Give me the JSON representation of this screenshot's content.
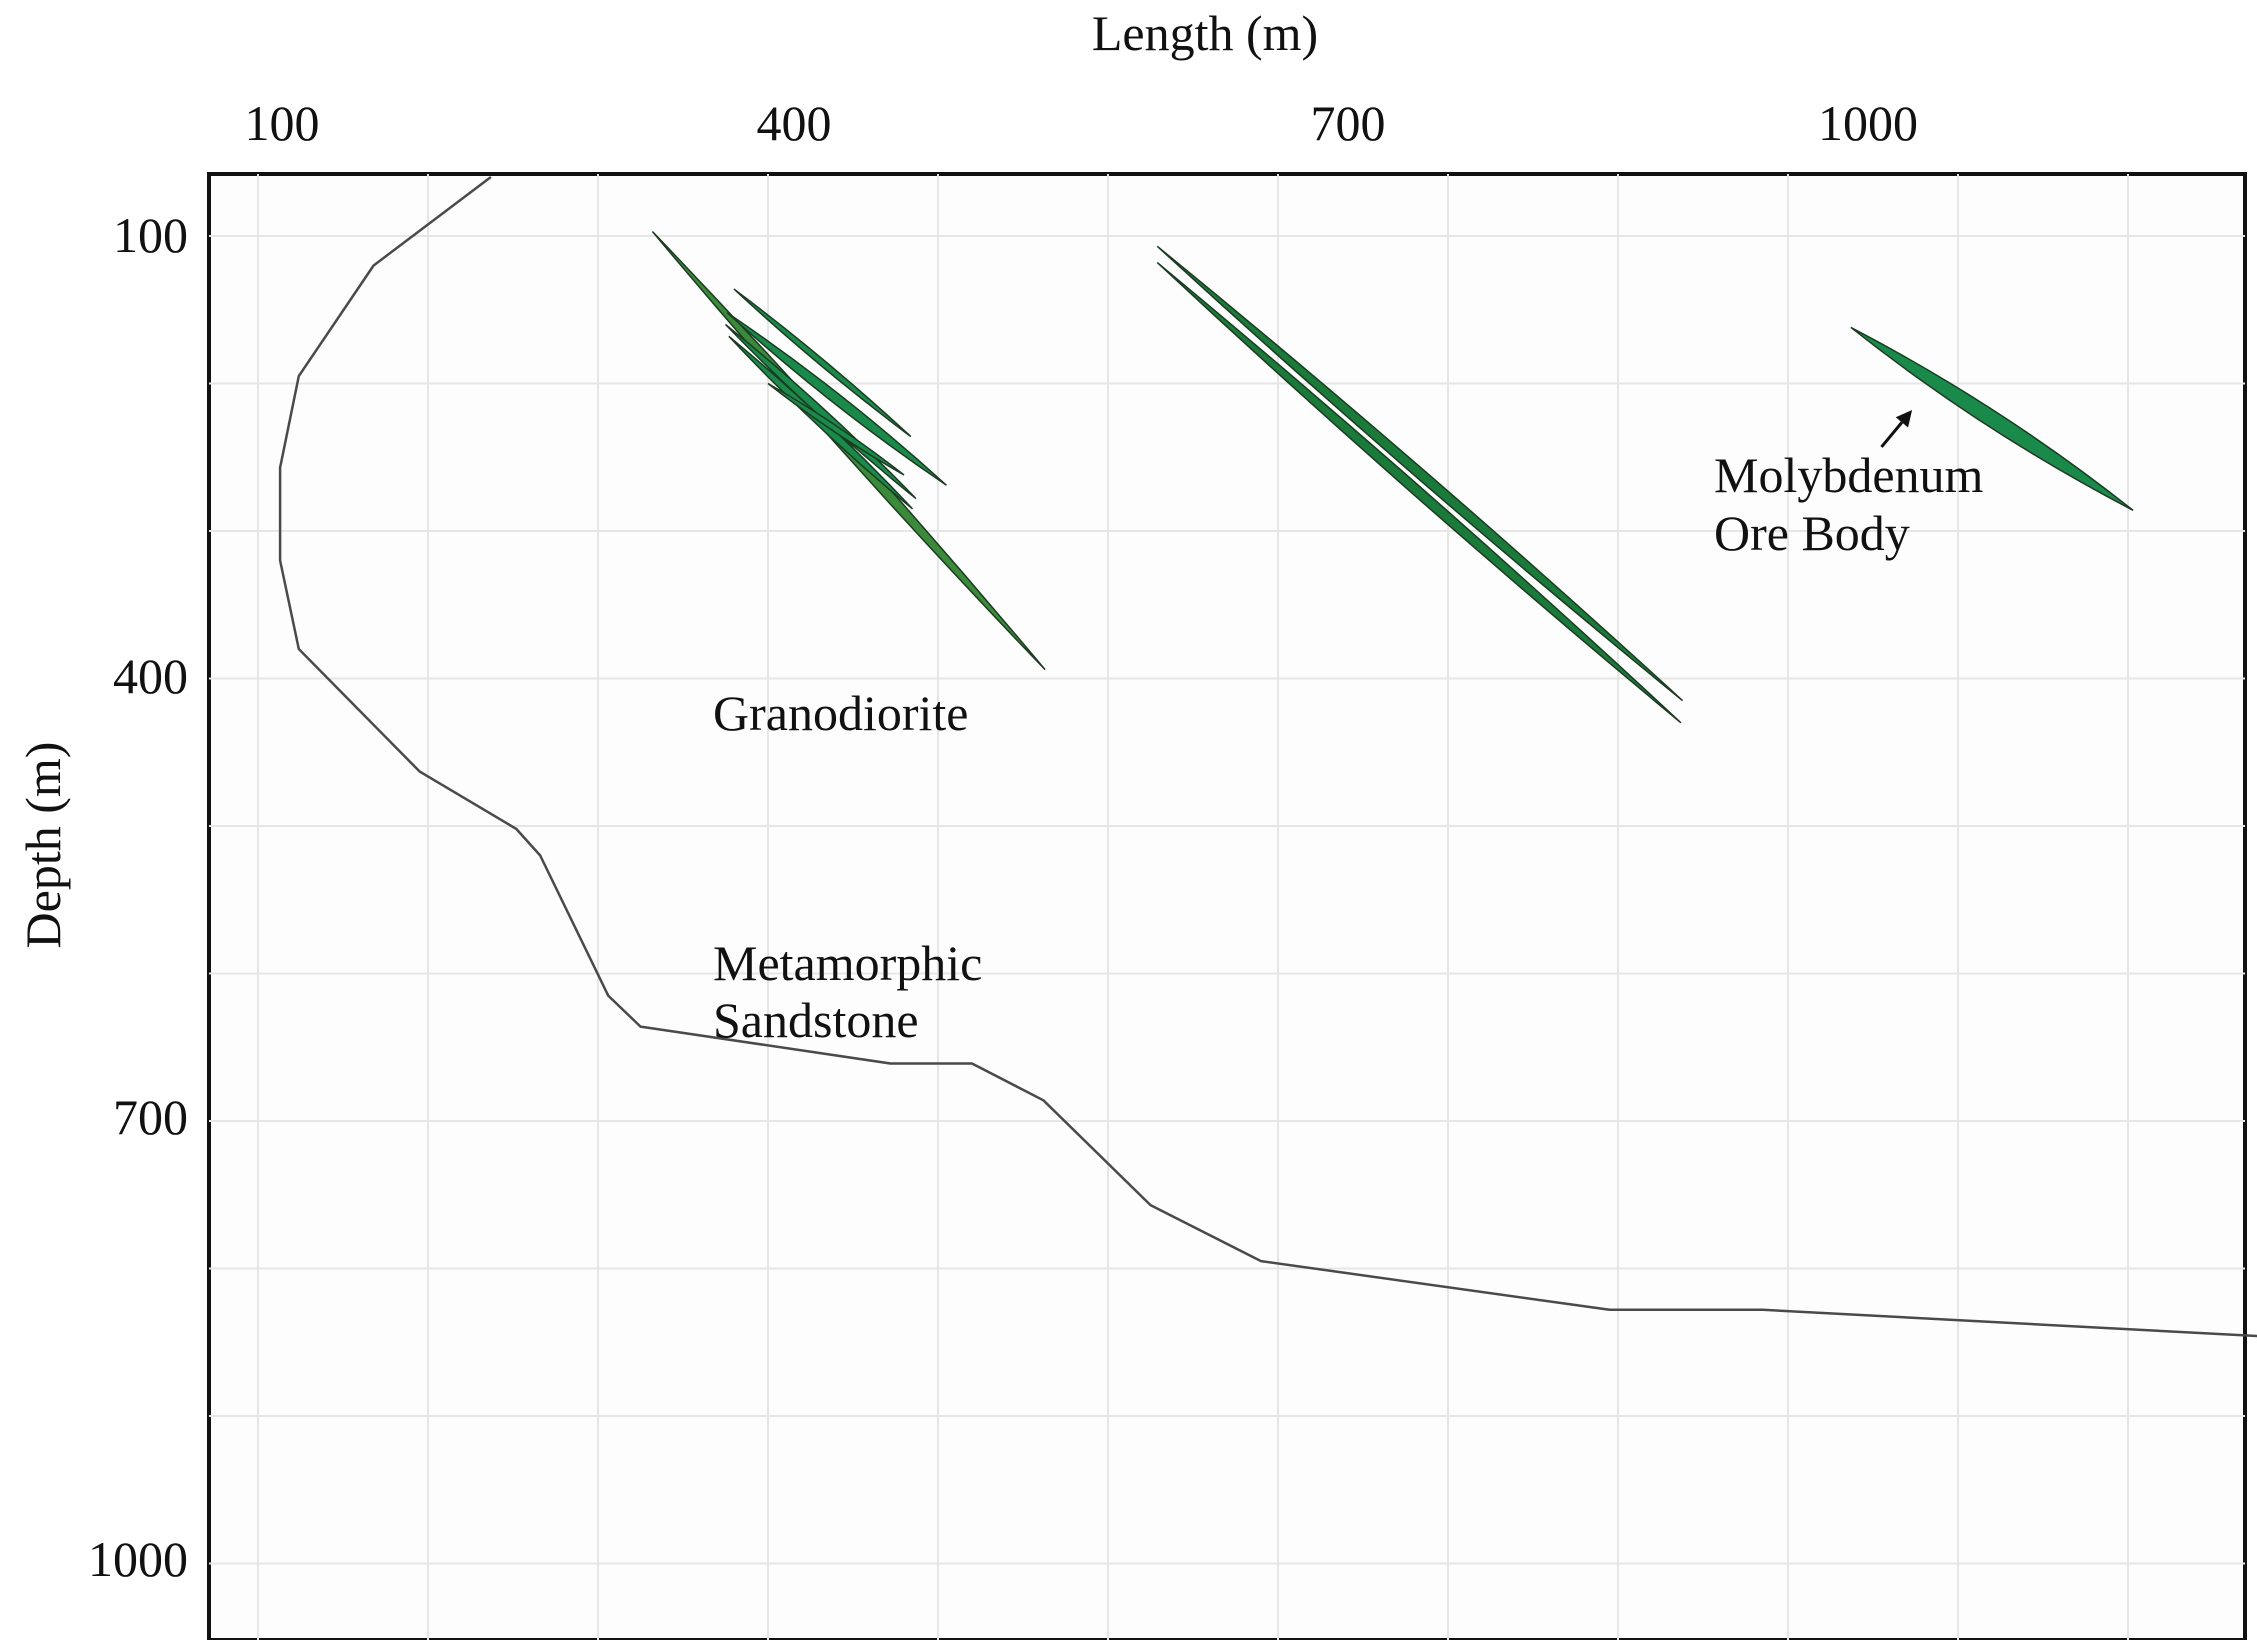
{
  "chart_data": {
    "type": "cross-section",
    "xlabel": "Length (m)",
    "ylabel": "Depth (m)",
    "x_ticks": [
      100,
      400,
      700,
      1000
    ],
    "y_ticks": [
      100,
      400,
      700,
      1000
    ],
    "xlim": [
      70,
      1290
    ],
    "ylim": [
      60,
      1050
    ],
    "grid": true,
    "labels": {
      "granodiorite": "Granodiorite",
      "sandstone_line1": "Metamorphic",
      "sandstone_line2": "Sandstone",
      "ore_line1": "Molybdenum",
      "ore_line2": "Ore Body"
    },
    "contact_boundary": [
      [
        237,
        60
      ],
      [
        168,
        120
      ],
      [
        124,
        195
      ],
      [
        113,
        257
      ],
      [
        113,
        320
      ],
      [
        124,
        380
      ],
      [
        195,
        463
      ],
      [
        252,
        502
      ],
      [
        266,
        520
      ],
      [
        306,
        615
      ],
      [
        325,
        636
      ],
      [
        472,
        661
      ],
      [
        520,
        661
      ],
      [
        562,
        686
      ],
      [
        625,
        757
      ],
      [
        690,
        795
      ],
      [
        895,
        828
      ],
      [
        985,
        828
      ],
      [
        1280,
        846
      ]
    ],
    "ore_bodies": [
      {
        "group": "west",
        "top": [
          332,
          97
        ],
        "bottom": [
          563,
          394
        ],
        "width": 5,
        "color": "#3a8a3a"
      },
      {
        "group": "west",
        "top": [
          380,
          136
        ],
        "bottom": [
          484,
          236
        ],
        "width": 3,
        "color": "#1a8a4a"
      },
      {
        "group": "west",
        "top": [
          376,
          152
        ],
        "bottom": [
          505,
          269
        ],
        "width": 5,
        "color": "#1a8a4a"
      },
      {
        "group": "west",
        "top": [
          375,
          160
        ],
        "bottom": [
          487,
          278
        ],
        "width": 4,
        "color": "#1a8a4a"
      },
      {
        "group": "west",
        "top": [
          377,
          168
        ],
        "bottom": [
          485,
          285
        ],
        "width": 4,
        "color": "#1a8a4a"
      },
      {
        "group": "west",
        "top": [
          400,
          200
        ],
        "bottom": [
          480,
          262
        ],
        "width": 3,
        "color": "#1a8a4a"
      },
      {
        "group": "central",
        "top": [
          629,
          107
        ],
        "bottom": [
          938,
          415
        ],
        "width": 5,
        "color": "#1a7a3a"
      },
      {
        "group": "central",
        "top": [
          629,
          118
        ],
        "bottom": [
          937,
          430
        ],
        "width": 5,
        "color": "#1a7a3a"
      },
      {
        "group": "east",
        "top": [
          1037,
          162
        ],
        "bottom": [
          1203,
          286
        ],
        "width": 8,
        "color": "#1a8a4a"
      }
    ],
    "ore_arrow": {
      "from": [
        1055,
        243
      ],
      "to": [
        1073,
        218
      ]
    }
  }
}
